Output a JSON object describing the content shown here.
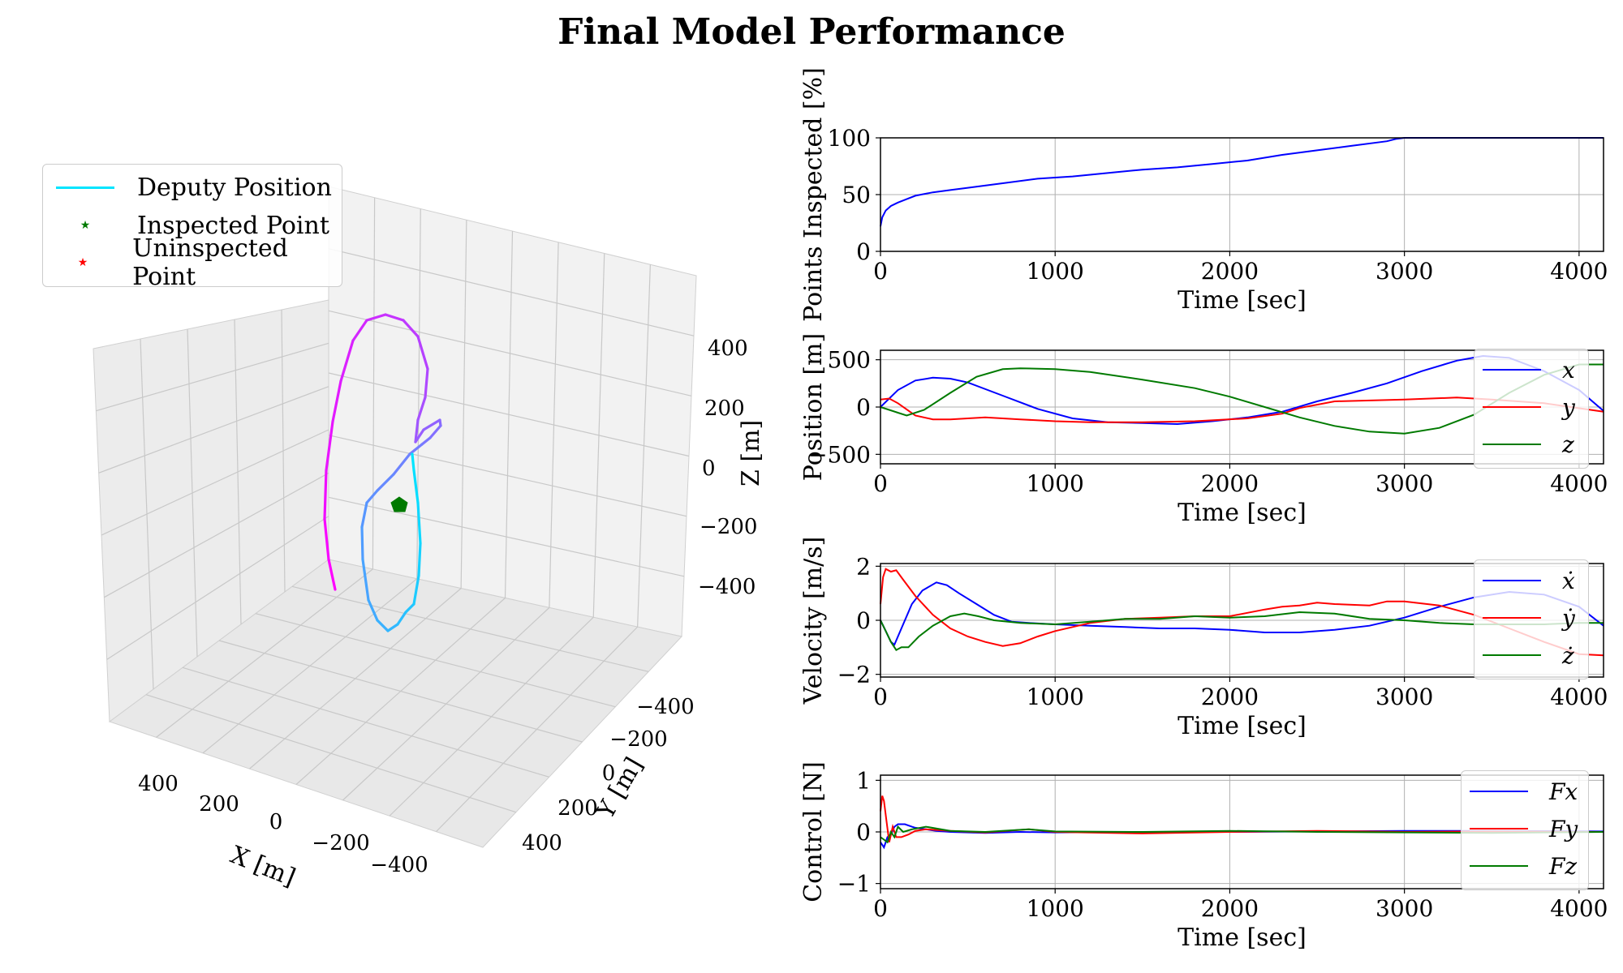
{
  "title": "Final Model Performance",
  "colors": {
    "deputy": "#00e5ff",
    "inspected": "#007a00",
    "uninspected": "#ff0000",
    "x": "#0000ff",
    "y": "#ff0000",
    "z": "#007a00",
    "grid": "#b0b0b0"
  },
  "legend3d": {
    "deputy": "Deputy Position",
    "inspected": "Inspected Point",
    "uninspected": "Uninspected Point"
  },
  "chart_data": [
    {
      "type": "line3d",
      "title": "",
      "xlabel": "X [m]",
      "ylabel": "Y [m]",
      "zlabel": "Z [m]",
      "x_ticks": [
        "400",
        "200",
        "0",
        "−200",
        "−400"
      ],
      "y_ticks": [
        "−400",
        "−200",
        "0",
        "200",
        "400"
      ],
      "z_ticks": [
        "400",
        "200",
        "0",
        "−200",
        "−400"
      ],
      "series": [
        {
          "name": "Deputy Position",
          "color_gradient": [
            "#00e5ff",
            "#ff00ff"
          ]
        },
        {
          "name": "Inspected Point",
          "marker": "pentagon",
          "color": "#007a00"
        }
      ]
    },
    {
      "type": "line",
      "xlabel": "Time [sec]",
      "ylabel": "Points Inspected [%]",
      "xlim": [
        0,
        4140
      ],
      "ylim": [
        0,
        100
      ],
      "x_ticks": [
        0,
        1000,
        2000,
        3000,
        4000
      ],
      "y_ticks": [
        0,
        50,
        100
      ],
      "series": [
        {
          "name": "Points Inspected",
          "color": "#0000ff",
          "x": [
            0,
            10,
            30,
            60,
            100,
            150,
            200,
            300,
            400,
            500,
            700,
            900,
            1100,
            1300,
            1500,
            1700,
            1900,
            2100,
            2300,
            2500,
            2700,
            2900,
            2950,
            3000,
            3500,
            4140
          ],
          "values": [
            22,
            30,
            36,
            40,
            43,
            46,
            49,
            52,
            54,
            56,
            60,
            64,
            66,
            69,
            72,
            74,
            77,
            80,
            85,
            89,
            93,
            97,
            99,
            100,
            100,
            100
          ]
        }
      ]
    },
    {
      "type": "line",
      "xlabel": "Time [sec]",
      "ylabel": "Position [m]",
      "xlim": [
        0,
        4140
      ],
      "ylim": [
        -600,
        600
      ],
      "x_ticks": [
        0,
        1000,
        2000,
        3000,
        4000
      ],
      "y_ticks": [
        500,
        0,
        -500
      ],
      "y_tick_labels": [
        "500",
        "0",
        "−500"
      ],
      "legend": [
        "x",
        "y",
        "z"
      ],
      "series": [
        {
          "name": "x",
          "color": "#0000ff",
          "x": [
            0,
            100,
            200,
            300,
            400,
            500,
            700,
            900,
            1100,
            1300,
            1500,
            1700,
            1900,
            2100,
            2300,
            2500,
            2700,
            2900,
            3100,
            3300,
            3450,
            3600,
            3800,
            4000,
            4140
          ],
          "values": [
            0,
            180,
            280,
            310,
            300,
            260,
            120,
            -20,
            -120,
            -160,
            -170,
            -180,
            -150,
            -110,
            -50,
            60,
            150,
            250,
            380,
            490,
            540,
            520,
            380,
            180,
            -40
          ]
        },
        {
          "name": "y",
          "color": "#ff0000",
          "x": [
            0,
            50,
            100,
            200,
            300,
            400,
            600,
            800,
            1000,
            1200,
            1500,
            1800,
            2100,
            2300,
            2400,
            2600,
            3000,
            3300,
            3500,
            3800,
            4140
          ],
          "values": [
            80,
            90,
            40,
            -90,
            -130,
            -130,
            -110,
            -130,
            -150,
            -160,
            -160,
            -150,
            -120,
            -70,
            -10,
            60,
            80,
            100,
            80,
            40,
            -50
          ]
        },
        {
          "name": "z",
          "color": "#007a00",
          "x": [
            0,
            50,
            100,
            150,
            250,
            400,
            550,
            700,
            800,
            1000,
            1200,
            1500,
            1800,
            2000,
            2200,
            2400,
            2600,
            2800,
            3000,
            3200,
            3400,
            3600,
            3800,
            4000,
            4140
          ],
          "values": [
            0,
            -30,
            -60,
            -90,
            -30,
            150,
            320,
            400,
            410,
            400,
            370,
            290,
            200,
            110,
            0,
            -110,
            -200,
            -260,
            -280,
            -220,
            -80,
            150,
            340,
            450,
            450
          ]
        }
      ]
    },
    {
      "type": "line",
      "xlabel": "Time [sec]",
      "ylabel": "Velocity [m/s]",
      "xlim": [
        0,
        4140
      ],
      "ylim": [
        -2.1,
        2.1
      ],
      "x_ticks": [
        0,
        1000,
        2000,
        3000,
        4000
      ],
      "y_ticks": [
        2,
        0,
        -2
      ],
      "y_tick_labels": [
        "2",
        "0",
        "−2"
      ],
      "legend": [
        "ẋ",
        "ẏ",
        "ż"
      ],
      "series": [
        {
          "name": "x dot",
          "color": "#0000ff",
          "x": [
            0,
            30,
            60,
            80,
            120,
            180,
            240,
            320,
            380,
            450,
            550,
            650,
            750,
            850,
            1000,
            1200,
            1400,
            1600,
            1800,
            2000,
            2200,
            2400,
            2600,
            2800,
            3000,
            3200,
            3400,
            3600,
            3800,
            4000,
            4140
          ],
          "values": [
            0,
            -0.4,
            -0.8,
            -0.9,
            -0.3,
            0.6,
            1.1,
            1.4,
            1.3,
            1.0,
            0.6,
            0.2,
            -0.05,
            -0.1,
            -0.15,
            -0.2,
            -0.25,
            -0.3,
            -0.3,
            -0.35,
            -0.45,
            -0.45,
            -0.35,
            -0.2,
            0.1,
            0.5,
            0.85,
            1.05,
            0.95,
            0.5,
            -0.2
          ]
        },
        {
          "name": "y dot",
          "color": "#ff0000",
          "x": [
            0,
            15,
            30,
            60,
            90,
            130,
            200,
            300,
            400,
            500,
            600,
            700,
            800,
            900,
            1000,
            1200,
            1400,
            1600,
            1800,
            2000,
            2200,
            2300,
            2400,
            2500,
            2600,
            2800,
            2900,
            3000,
            3200,
            3400,
            3600,
            3800,
            4000,
            4140
          ],
          "values": [
            0.6,
            1.6,
            1.9,
            1.8,
            1.85,
            1.5,
            0.9,
            0.2,
            -0.3,
            -0.6,
            -0.8,
            -0.95,
            -0.85,
            -0.6,
            -0.4,
            -0.1,
            0.05,
            0.1,
            0.15,
            0.15,
            0.4,
            0.5,
            0.55,
            0.65,
            0.6,
            0.55,
            0.7,
            0.7,
            0.55,
            0.2,
            -0.3,
            -0.8,
            -1.25,
            -1.3
          ]
        },
        {
          "name": "z dot",
          "color": "#007a00",
          "x": [
            0,
            30,
            60,
            90,
            120,
            160,
            220,
            300,
            400,
            480,
            560,
            650,
            800,
            1000,
            1200,
            1400,
            1600,
            1800,
            2000,
            2200,
            2400,
            2600,
            2800,
            3000,
            3200,
            3400,
            3600,
            3800,
            4000,
            4140
          ],
          "values": [
            0,
            -0.4,
            -0.8,
            -1.1,
            -1.0,
            -1.0,
            -0.6,
            -0.2,
            0.15,
            0.25,
            0.15,
            0.0,
            -0.1,
            -0.15,
            -0.05,
            0.05,
            0.05,
            0.15,
            0.1,
            0.15,
            0.3,
            0.25,
            0.05,
            0.0,
            -0.1,
            -0.15,
            -0.15,
            -0.15,
            -0.1,
            -0.1
          ]
        }
      ]
    },
    {
      "type": "line",
      "xlabel": "Time [sec]",
      "ylabel": "Control [N]",
      "xlim": [
        0,
        4140
      ],
      "ylim": [
        -1.1,
        1.1
      ],
      "x_ticks": [
        0,
        1000,
        2000,
        3000,
        4000
      ],
      "y_ticks": [
        1,
        0,
        -1
      ],
      "y_tick_labels": [
        "1",
        "0",
        "−1"
      ],
      "legend": [
        "Fx",
        "Fy",
        "Fz"
      ],
      "series": [
        {
          "name": "Fx",
          "color": "#0000ff",
          "x": [
            0,
            20,
            40,
            60,
            80,
            100,
            140,
            180,
            200,
            260,
            320,
            400,
            600,
            800,
            1000,
            1500,
            2000,
            2500,
            3000,
            3500,
            4140
          ],
          "values": [
            -0.2,
            -0.3,
            -0.1,
            -0.05,
            0.1,
            0.15,
            0.15,
            0.1,
            0.08,
            0.05,
            0.02,
            0.0,
            -0.02,
            0.0,
            -0.01,
            0.0,
            0.0,
            0.01,
            0.02,
            0.02,
            0.01
          ]
        },
        {
          "name": "Fy",
          "color": "#ff0000",
          "x": [
            0,
            10,
            20,
            35,
            50,
            70,
            90,
            120,
            160,
            200,
            260,
            400,
            600,
            850,
            1000,
            1500,
            2000,
            2500,
            3000,
            3500,
            4140
          ],
          "values": [
            0.4,
            0.7,
            0.6,
            0.2,
            -0.2,
            0.1,
            -0.1,
            -0.1,
            -0.05,
            0.02,
            0.05,
            0.02,
            -0.01,
            0.05,
            0.0,
            -0.03,
            0.0,
            0.02,
            0.0,
            0.01,
            0.0
          ]
        },
        {
          "name": "Fz",
          "color": "#007a00",
          "x": [
            0,
            20,
            40,
            60,
            80,
            100,
            130,
            180,
            260,
            400,
            600,
            850,
            1000,
            1500,
            2000,
            2500,
            3000,
            3500,
            4140
          ],
          "values": [
            -0.1,
            -0.15,
            -0.2,
            0.0,
            -0.1,
            0.1,
            0.0,
            0.05,
            0.1,
            0.02,
            0.0,
            0.05,
            0.01,
            0.0,
            0.02,
            0.0,
            -0.01,
            -0.02,
            0.0
          ]
        }
      ]
    }
  ]
}
